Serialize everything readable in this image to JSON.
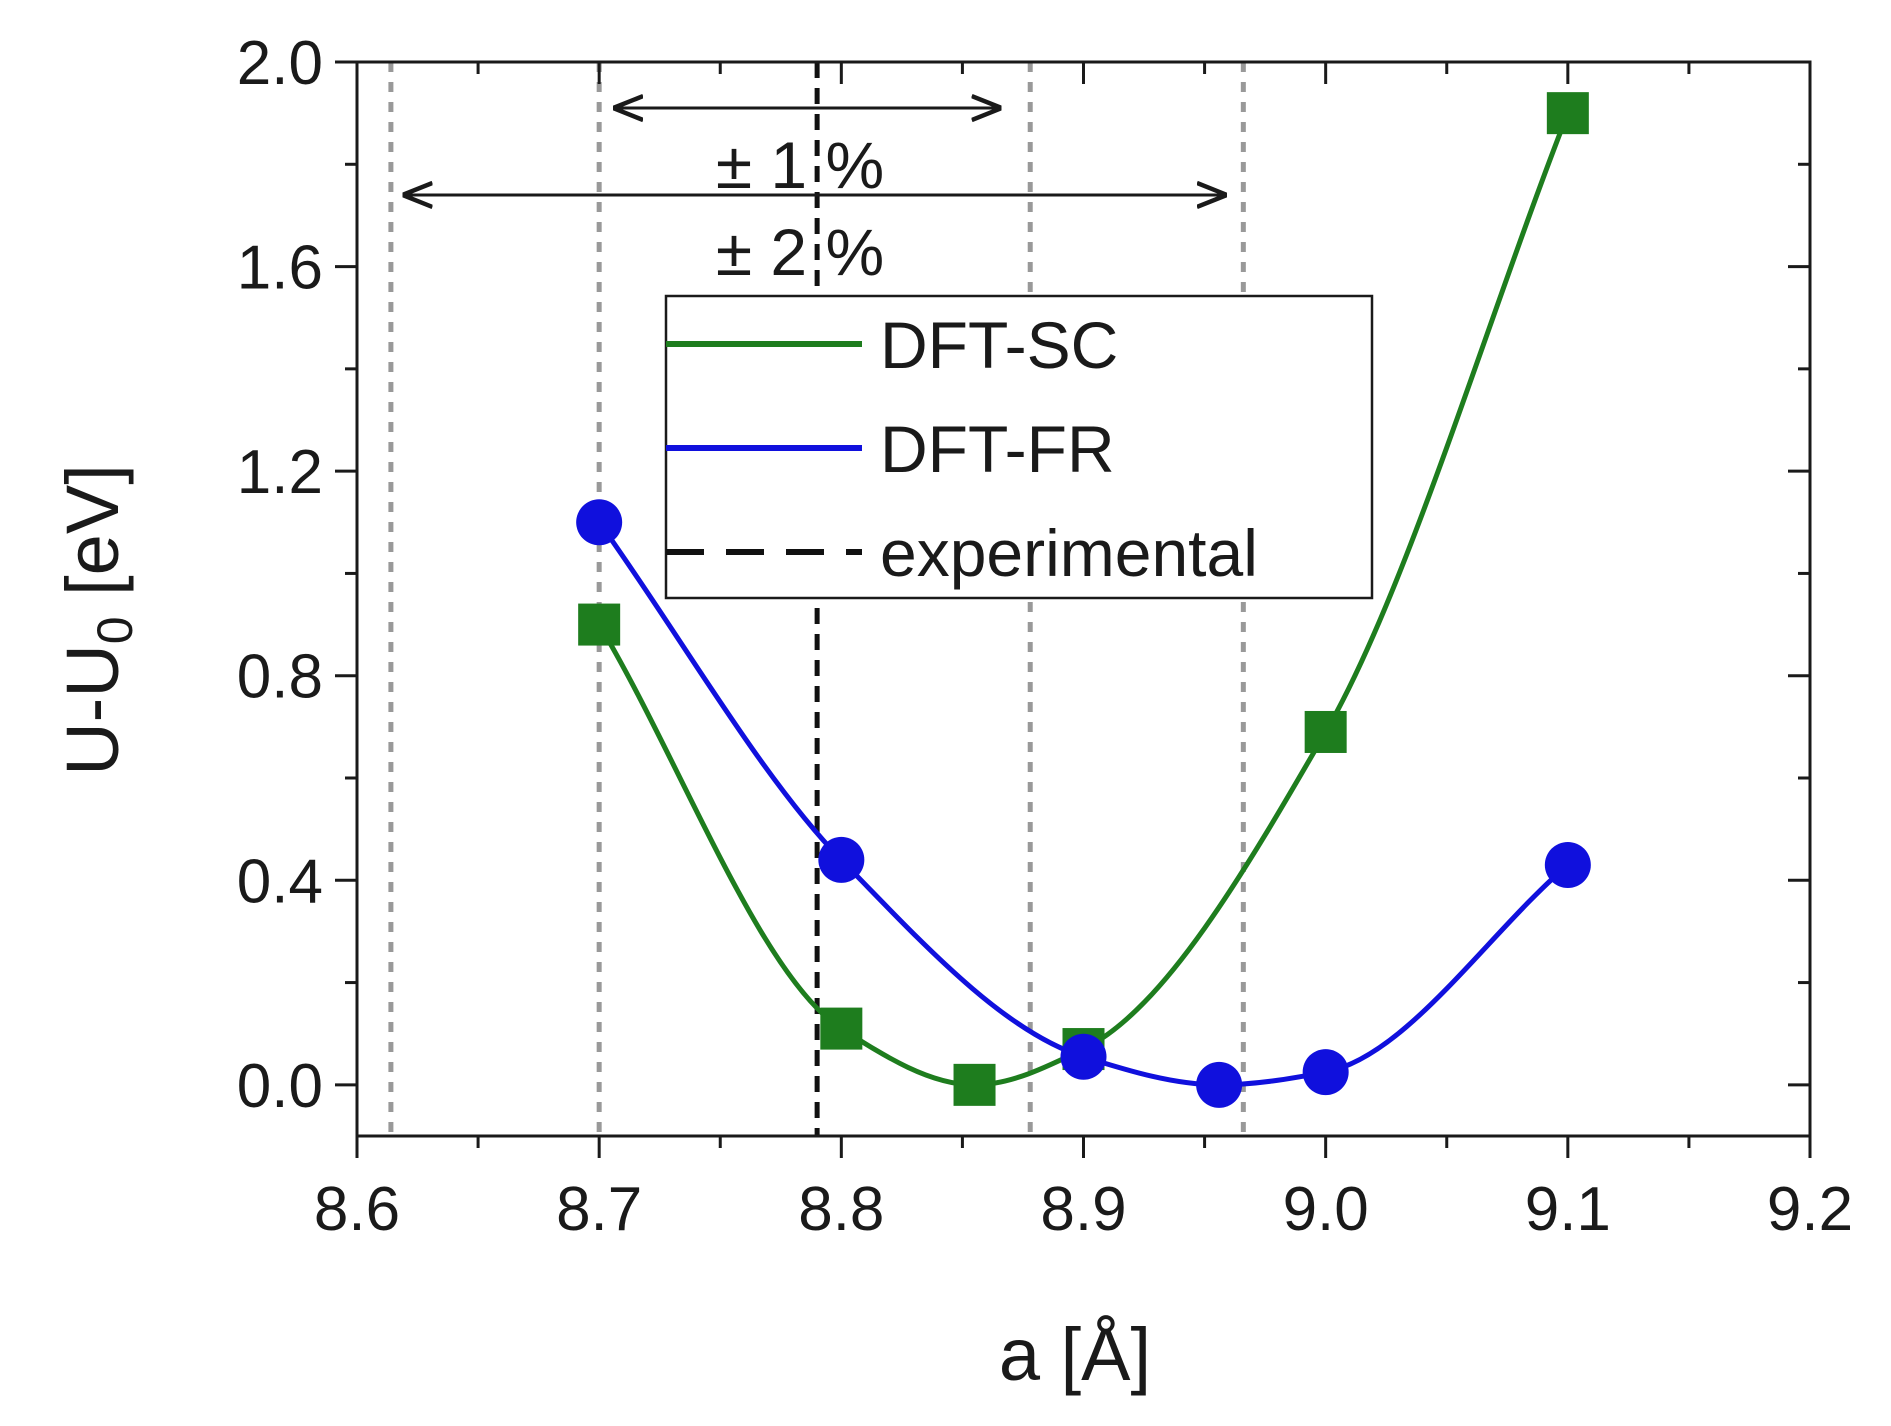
{
  "chart_data": {
    "type": "line",
    "title": "",
    "xlabel": "a [Å]",
    "ylabel_main": "U-U",
    "ylabel_sub": "0",
    "ylabel_unit": " [eV]",
    "xlim": [
      8.6,
      9.2
    ],
    "ylim": [
      -0.1,
      2.0
    ],
    "x_ticks": [
      8.6,
      8.7,
      8.8,
      8.9,
      9.0,
      9.1,
      9.2
    ],
    "x_tick_labels": [
      "8.6",
      "8.7",
      "8.8",
      "8.9",
      "9.0",
      "9.1",
      "9.2"
    ],
    "y_ticks": [
      0.0,
      0.4,
      0.8,
      1.2,
      1.6,
      2.0
    ],
    "y_tick_labels": [
      "0.0",
      "0.4",
      "0.8",
      "1.2",
      "1.6",
      "2.0"
    ],
    "series": [
      {
        "name": "DFT-SC",
        "color": "#1e7d1e",
        "marker": "square",
        "x": [
          8.7,
          8.8,
          8.855,
          8.9,
          9.0,
          9.1
        ],
        "y": [
          0.9,
          0.11,
          0.0,
          0.07,
          0.69,
          1.9
        ]
      },
      {
        "name": "DFT-FR",
        "color": "#1010dd",
        "marker": "circle",
        "x": [
          8.7,
          8.8,
          8.9,
          8.956,
          9.0,
          9.1
        ],
        "y": [
          1.1,
          0.44,
          0.055,
          0.0,
          0.025,
          0.43
        ]
      }
    ],
    "experimental": {
      "name": "experimental",
      "x": 8.79,
      "color": "#111111"
    },
    "range_lines": {
      "x": [
        8.614,
        8.7,
        8.878,
        8.966
      ],
      "color": "#999999"
    },
    "annotations": [
      {
        "text": "± 1 %",
        "x_from": 8.707,
        "x_to": 8.865,
        "y": 1.91
      },
      {
        "text": "± 2 %",
        "x_from": 8.62,
        "x_to": 8.958,
        "y": 1.74
      }
    ],
    "legend": {
      "position": "upper-center",
      "items": [
        "DFT-SC",
        "DFT-FR",
        "experimental"
      ]
    }
  }
}
